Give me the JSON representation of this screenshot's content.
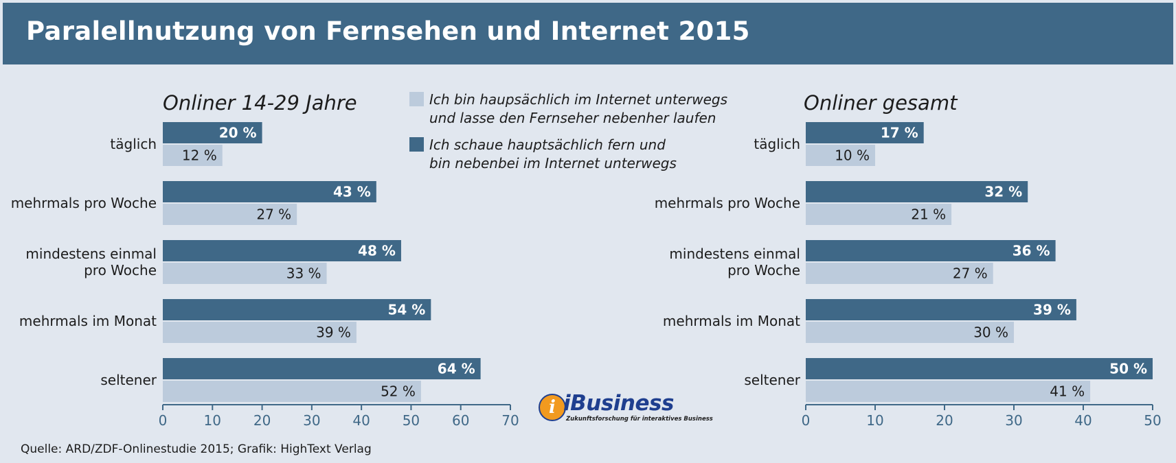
{
  "header": {
    "title": "Paralellnutzung von Fernsehen und Internet 2015"
  },
  "colors": {
    "header_bg": "#3f6887",
    "dark_bar": "#3f6887",
    "light_bar": "#bccbdc",
    "background": "#e1e7ef",
    "logo_blue": "#1f3f8f",
    "logo_orange": "#f29a1f"
  },
  "legend": {
    "items": [
      {
        "lines": [
          "Ich bin haupsächlich im Internet unterwegs",
          "und lasse den Fernseher nebenher laufen"
        ],
        "color": "#bccbdc"
      },
      {
        "lines": [
          "Ich schaue hauptsächlich fern und",
          "bin nebenbei im Internet unterwegs"
        ],
        "color": "#3f6887"
      }
    ]
  },
  "chart_data": [
    {
      "type": "bar",
      "orientation": "horizontal",
      "title": "Onliner 14-29 Jahre",
      "categories": [
        [
          "täglich"
        ],
        [
          "mehrmals pro Woche"
        ],
        [
          "mindestens einmal",
          "pro Woche"
        ],
        [
          "mehrmals im Monat"
        ],
        [
          "seltener"
        ]
      ],
      "series": [
        {
          "values": [
            20,
            43,
            48,
            54,
            64
          ],
          "labels": [
            "20 %",
            "43 %",
            "48 %",
            "54 %",
            "64 %"
          ],
          "color": "#3f6887"
        },
        {
          "values": [
            12,
            27,
            33,
            39,
            52
          ],
          "labels": [
            "12 %",
            "27 %",
            "33 %",
            "39 %",
            "52 %"
          ],
          "color": "#bccbdc"
        }
      ],
      "xlim": [
        0,
        70
      ],
      "ticks": [
        0,
        10,
        20,
        30,
        40,
        50,
        60,
        70
      ]
    },
    {
      "type": "bar",
      "orientation": "horizontal",
      "title": "Onliner gesamt",
      "categories": [
        [
          "täglich"
        ],
        [
          "mehrmals pro Woche"
        ],
        [
          "mindestens einmal",
          "pro Woche"
        ],
        [
          "mehrmals im Monat"
        ],
        [
          "seltener"
        ]
      ],
      "series": [
        {
          "values": [
            17,
            32,
            36,
            39,
            50
          ],
          "labels": [
            "17 %",
            "32 %",
            "36 %",
            "39 %",
            "50 %"
          ],
          "color": "#3f6887"
        },
        {
          "values": [
            10,
            21,
            27,
            30,
            41
          ],
          "labels": [
            "10 %",
            "21 %",
            "27 %",
            "30 %",
            "41 %"
          ],
          "color": "#bccbdc"
        }
      ],
      "xlim": [
        0,
        50
      ],
      "ticks": [
        0,
        10,
        20,
        30,
        40,
        50
      ]
    }
  ],
  "source": "Quelle: ARD/ZDF-Onlinestudie 2015; Grafik: HighText Verlag",
  "logo": {
    "symbol": "i",
    "name": "iBusiness",
    "tagline": "Zukunftsforschung für interaktives Business"
  }
}
